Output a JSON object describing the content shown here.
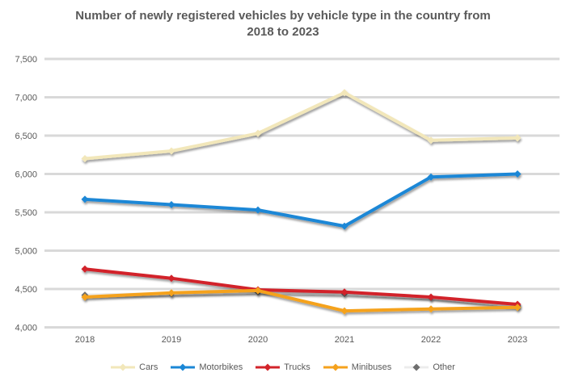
{
  "title": {
    "line1": "Number of newly registered vehicles by vehicle type in the country from",
    "line2": "2018 to 2023"
  },
  "colors": {
    "background": "#ffffff",
    "grid": "#d9d9d9",
    "text": "#595959"
  },
  "chart_data": {
    "type": "line",
    "title": "Number of newly registered vehicles by vehicle type in the country from 2018 to 2023",
    "xlabel": "",
    "ylabel": "",
    "categories": [
      "2018",
      "2019",
      "2020",
      "2021",
      "2022",
      "2023"
    ],
    "ylim": [
      4000,
      7500
    ],
    "ytick_labels": [
      "4,000",
      "4,500",
      "5,000",
      "5,500",
      "6,000",
      "6,500",
      "7,000",
      "7,500"
    ],
    "grid": "horizontal",
    "legend_position": "bottom",
    "marker": "diamond",
    "series": [
      {
        "name": "Cars",
        "color": "#f2e7ba",
        "marker_color": "#f2e7ba",
        "draw_order": 2,
        "values": [
          6200,
          6300,
          6530,
          7060,
          6440,
          6470
        ]
      },
      {
        "name": "Motorbikes",
        "color": "#1b87d6",
        "marker_color": "#1b87d6",
        "draw_order": 3,
        "values": [
          5670,
          5600,
          5530,
          5320,
          5960,
          6000
        ]
      },
      {
        "name": "Trucks",
        "color": "#d2232a",
        "marker_color": "#d2232a",
        "draw_order": 4,
        "values": [
          4760,
          4640,
          4490,
          4460,
          4395,
          4300
        ]
      },
      {
        "name": "Minibuses",
        "color": "#f5a21d",
        "marker_color": "#f5a21d",
        "draw_order": 5,
        "values": [
          4395,
          4450,
          4480,
          4215,
          4240,
          4260
        ]
      },
      {
        "name": "Other",
        "color": "#ececec",
        "marker_color": "#6e6e6e",
        "draw_order": 1,
        "values": [
          4420,
          4440,
          4460,
          4440,
          4390,
          4280
        ]
      }
    ]
  }
}
